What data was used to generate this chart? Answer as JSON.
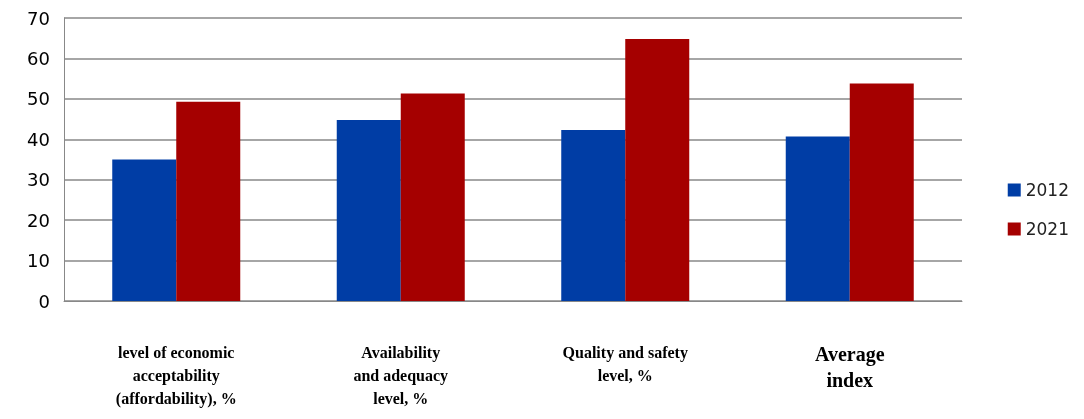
{
  "chart_data": {
    "type": "bar",
    "categories": [
      "level of economic\nacceptability\n(affordability), %",
      "Availability\nand adequacy\nlevel, %",
      "Quality and safety\nlevel, %",
      "Average\nindex"
    ],
    "series": [
      {
        "name": "2012",
        "color": "#003da5",
        "values": [
          35.0,
          44.8,
          42.3,
          40.7
        ]
      },
      {
        "name": "2021",
        "color": "#a50000",
        "values": [
          49.3,
          51.3,
          64.8,
          53.8
        ]
      }
    ],
    "ylim": [
      0,
      70
    ],
    "yticks": [
      0,
      10,
      20,
      30,
      40,
      50,
      60,
      70
    ],
    "grid": "y",
    "legend": "right"
  }
}
